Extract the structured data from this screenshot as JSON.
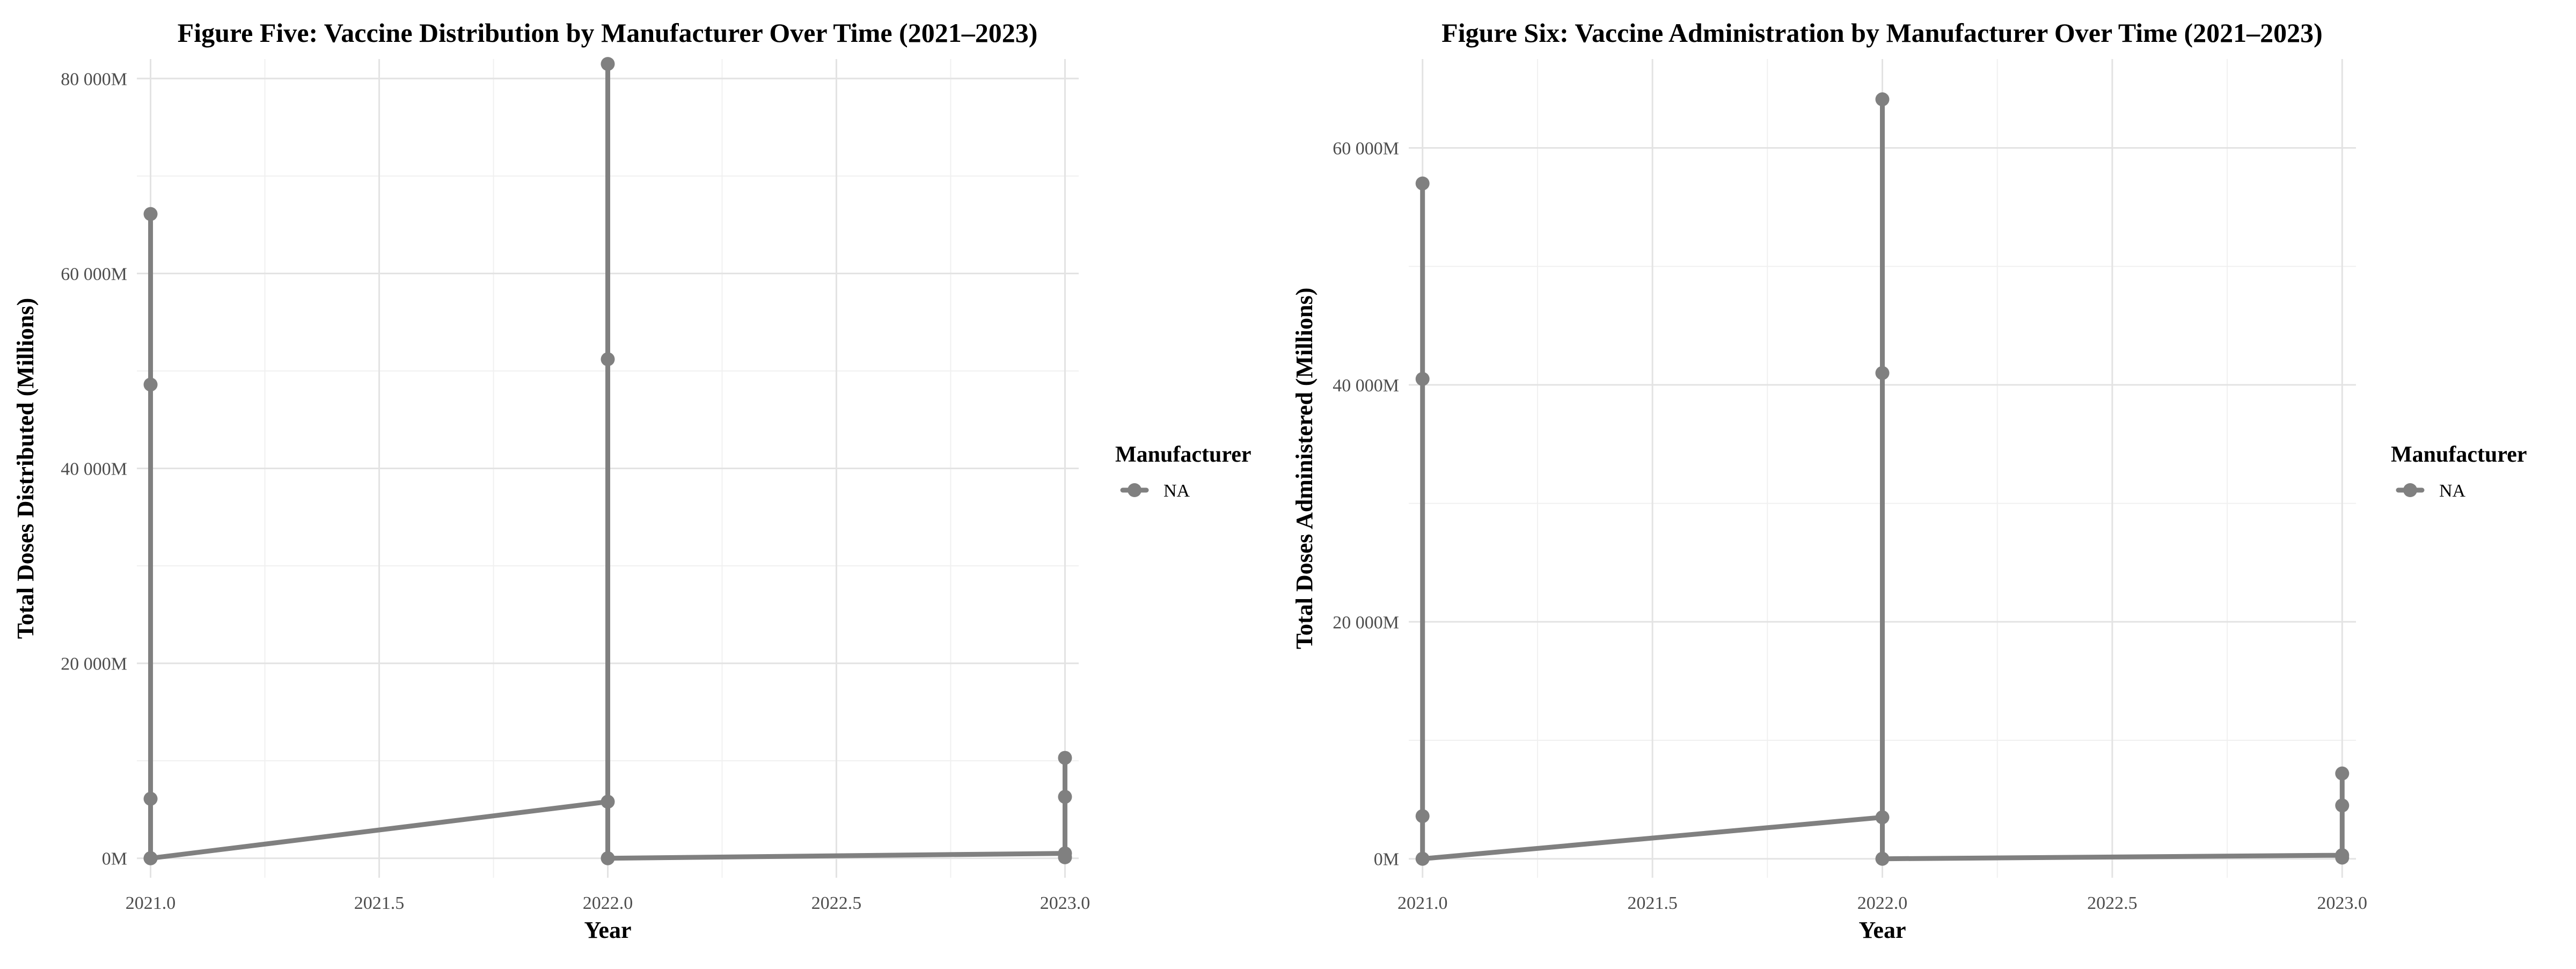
{
  "chart_data": [
    {
      "type": "line",
      "title": "Figure Five: Vaccine Distribution by Manufacturer Over Time (2021–2023)",
      "xlabel": "Year",
      "ylabel": "Total Doses Distributed (Millions)",
      "xlim": [
        2020.97,
        2023.03
      ],
      "ylim": [
        -2000,
        82000
      ],
      "x_ticks": [
        2021.0,
        2021.5,
        2022.0,
        2022.5,
        2023.0
      ],
      "x_tick_labels": [
        "2021.0",
        "2021.5",
        "2022.0",
        "2022.5",
        "2023.0"
      ],
      "y_ticks": [
        0,
        20000,
        40000,
        60000,
        80000
      ],
      "y_tick_labels": [
        "0M",
        "20 000M",
        "40 000M",
        "60 000M",
        "80 000M"
      ],
      "grid": true,
      "legend_position": "right",
      "legend_title": "Manufacturer",
      "line_color": "#808080",
      "series": [
        {
          "name": "NA",
          "points": [
            {
              "x": 2021,
              "y": 0
            },
            {
              "x": 2021,
              "y": 6100
            },
            {
              "x": 2021,
              "y": 48600
            },
            {
              "x": 2021,
              "y": 66100
            },
            {
              "x": 2021,
              "y": 0
            },
            {
              "x": 2022,
              "y": 5800
            },
            {
              "x": 2022,
              "y": 51200
            },
            {
              "x": 2022,
              "y": 81500
            },
            {
              "x": 2022,
              "y": 0
            },
            {
              "x": 2023,
              "y": 500
            },
            {
              "x": 2023,
              "y": 6300
            },
            {
              "x": 2023,
              "y": 10300
            },
            {
              "x": 2023,
              "y": 100
            }
          ]
        }
      ]
    },
    {
      "type": "line",
      "title": "Figure Six: Vaccine Administration by Manufacturer Over Time (2021–2023)",
      "xlabel": "Year",
      "ylabel": "Total Doses Administered (Millions)",
      "xlim": [
        2020.97,
        2023.03
      ],
      "ylim": [
        -1600,
        67500
      ],
      "x_ticks": [
        2021.0,
        2021.5,
        2022.0,
        2022.5,
        2023.0
      ],
      "x_tick_labels": [
        "2021.0",
        "2021.5",
        "2022.0",
        "2022.5",
        "2023.0"
      ],
      "y_ticks": [
        0,
        20000,
        40000,
        60000
      ],
      "y_tick_labels": [
        "0M",
        "20 000M",
        "40 000M",
        "60 000M"
      ],
      "grid": true,
      "legend_position": "right",
      "legend_title": "Manufacturer",
      "line_color": "#808080",
      "series": [
        {
          "name": "NA",
          "points": [
            {
              "x": 2021,
              "y": 3600
            },
            {
              "x": 2021,
              "y": 40500
            },
            {
              "x": 2021,
              "y": 57000
            },
            {
              "x": 2021,
              "y": 0
            },
            {
              "x": 2022,
              "y": 3500
            },
            {
              "x": 2022,
              "y": 41000
            },
            {
              "x": 2022,
              "y": 64100
            },
            {
              "x": 2022,
              "y": 0
            },
            {
              "x": 2023,
              "y": 300
            },
            {
              "x": 2023,
              "y": 4500
            },
            {
              "x": 2023,
              "y": 7200
            },
            {
              "x": 2023,
              "y": 100
            }
          ]
        }
      ]
    }
  ]
}
